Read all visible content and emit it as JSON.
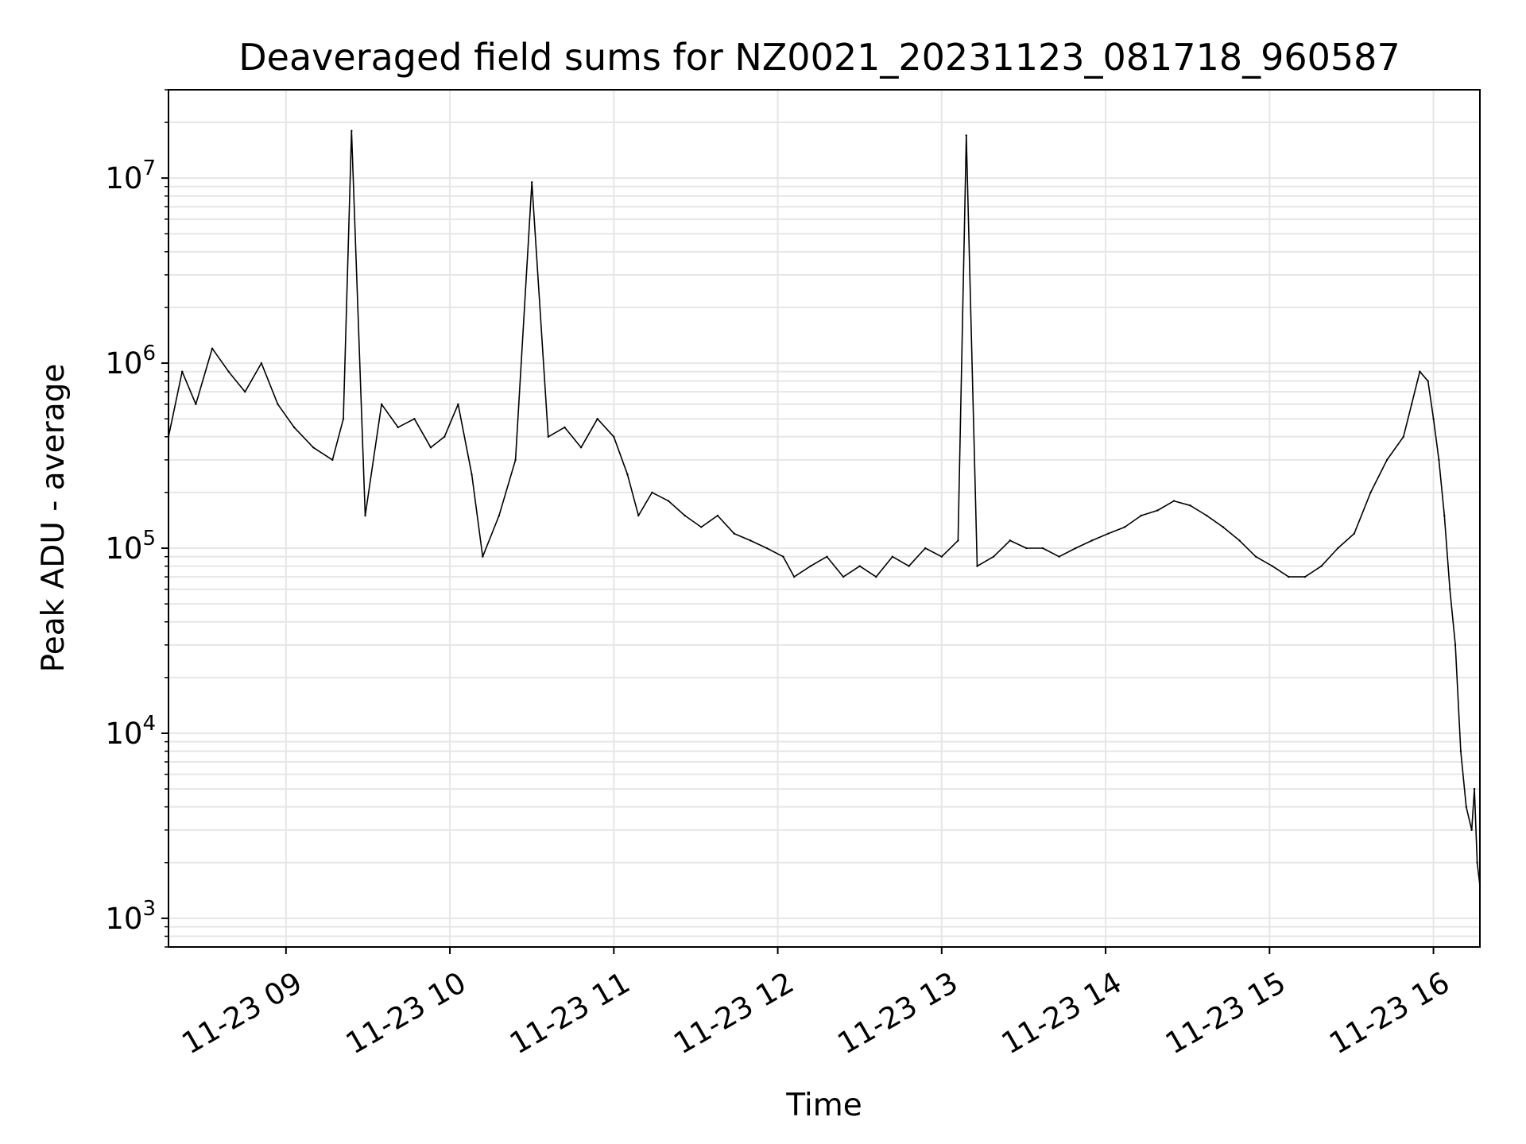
{
  "chart_data": {
    "type": "line",
    "title": "Deaveraged field sums for NZ0021_20231123_081718_960587",
    "xlabel": "Time",
    "ylabel": "Peak ADU - average",
    "yscale": "log",
    "ylim": [
      700,
      30000000
    ],
    "xlim": [
      "2023-11-23 08:17",
      "2023-11-23 16:17"
    ],
    "grid": true,
    "line_color": "#000000",
    "x_ticks": [
      {
        "time": "2023-11-23 09:00",
        "label": "11-23 09"
      },
      {
        "time": "2023-11-23 10:00",
        "label": "11-23 10"
      },
      {
        "time": "2023-11-23 11:00",
        "label": "11-23 11"
      },
      {
        "time": "2023-11-23 12:00",
        "label": "11-23 12"
      },
      {
        "time": "2023-11-23 13:00",
        "label": "11-23 13"
      },
      {
        "time": "2023-11-23 14:00",
        "label": "11-23 14"
      },
      {
        "time": "2023-11-23 15:00",
        "label": "11-23 15"
      },
      {
        "time": "2023-11-23 16:00",
        "label": "11-23 16"
      }
    ],
    "y_ticks": [
      {
        "value": 1000,
        "base": "10",
        "exp": "3"
      },
      {
        "value": 10000,
        "base": "10",
        "exp": "4"
      },
      {
        "value": 100000,
        "base": "10",
        "exp": "5"
      },
      {
        "value": 1000000,
        "base": "10",
        "exp": "6"
      },
      {
        "value": 10000000,
        "base": "10",
        "exp": "7"
      }
    ],
    "series": [
      {
        "x": [
          "2023-11-23 08:17",
          "2023-11-23 08:22",
          "2023-11-23 08:27",
          "2023-11-23 08:33",
          "2023-11-23 08:39",
          "2023-11-23 08:45",
          "2023-11-23 08:51",
          "2023-11-23 08:57",
          "2023-11-23 09:03",
          "2023-11-23 09:10",
          "2023-11-23 09:17",
          "2023-11-23 09:21",
          "2023-11-23 09:24",
          "2023-11-23 09:29",
          "2023-11-23 09:35",
          "2023-11-23 09:41",
          "2023-11-23 09:47",
          "2023-11-23 09:53",
          "2023-11-23 09:58",
          "2023-11-23 10:03",
          "2023-11-23 10:08",
          "2023-11-23 10:12",
          "2023-11-23 10:18",
          "2023-11-23 10:24",
          "2023-11-23 10:30",
          "2023-11-23 10:36",
          "2023-11-23 10:42",
          "2023-11-23 10:48",
          "2023-11-23 10:54",
          "2023-11-23 11:00",
          "2023-11-23 11:05",
          "2023-11-23 11:09",
          "2023-11-23 11:14",
          "2023-11-23 11:20",
          "2023-11-23 11:26",
          "2023-11-23 11:32",
          "2023-11-23 11:38",
          "2023-11-23 11:44",
          "2023-11-23 11:50",
          "2023-11-23 11:56",
          "2023-11-23 12:02",
          "2023-11-23 12:06",
          "2023-11-23 12:12",
          "2023-11-23 12:18",
          "2023-11-23 12:24",
          "2023-11-23 12:30",
          "2023-11-23 12:36",
          "2023-11-23 12:42",
          "2023-11-23 12:48",
          "2023-11-23 12:54",
          "2023-11-23 13:00",
          "2023-11-23 13:06",
          "2023-11-23 13:09",
          "2023-11-23 13:13",
          "2023-11-23 13:19",
          "2023-11-23 13:25",
          "2023-11-23 13:31",
          "2023-11-23 13:37",
          "2023-11-23 13:43",
          "2023-11-23 13:49",
          "2023-11-23 13:55",
          "2023-11-23 14:01",
          "2023-11-23 14:07",
          "2023-11-23 14:13",
          "2023-11-23 14:19",
          "2023-11-23 14:25",
          "2023-11-23 14:31",
          "2023-11-23 14:37",
          "2023-11-23 14:43",
          "2023-11-23 14:49",
          "2023-11-23 14:55",
          "2023-11-23 15:01",
          "2023-11-23 15:07",
          "2023-11-23 15:13",
          "2023-11-23 15:19",
          "2023-11-23 15:25",
          "2023-11-23 15:31",
          "2023-11-23 15:37",
          "2023-11-23 15:43",
          "2023-11-23 15:49",
          "2023-11-23 15:52",
          "2023-11-23 15:55",
          "2023-11-23 15:58",
          "2023-11-23 16:00",
          "2023-11-23 16:02",
          "2023-11-23 16:04",
          "2023-11-23 16:06",
          "2023-11-23 16:08",
          "2023-11-23 16:10",
          "2023-11-23 16:12",
          "2023-11-23 16:14",
          "2023-11-23 16:15",
          "2023-11-23 16:16",
          "2023-11-23 16:17"
        ],
        "y": [
          400000,
          900000,
          600000,
          1200000,
          900000,
          700000,
          1000000,
          600000,
          450000,
          350000,
          300000,
          500000,
          18000000,
          150000,
          600000,
          450000,
          500000,
          350000,
          400000,
          600000,
          250000,
          90000,
          150000,
          300000,
          9500000,
          400000,
          450000,
          350000,
          500000,
          400000,
          250000,
          150000,
          200000,
          180000,
          150000,
          130000,
          150000,
          120000,
          110000,
          100000,
          90000,
          70000,
          80000,
          90000,
          70000,
          80000,
          70000,
          90000,
          80000,
          100000,
          90000,
          110000,
          17000000,
          80000,
          90000,
          110000,
          100000,
          100000,
          90000,
          100000,
          110000,
          120000,
          130000,
          150000,
          160000,
          180000,
          170000,
          150000,
          130000,
          110000,
          90000,
          80000,
          70000,
          70000,
          80000,
          100000,
          120000,
          200000,
          300000,
          400000,
          600000,
          900000,
          800000,
          500000,
          300000,
          150000,
          60000,
          30000,
          8000,
          4000,
          3000,
          5000,
          2000,
          1500
        ]
      }
    ]
  }
}
